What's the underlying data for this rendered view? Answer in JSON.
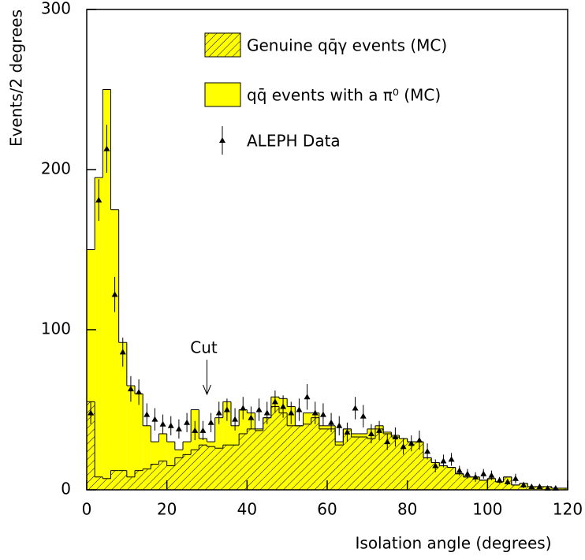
{
  "chart_data": {
    "type": "histogram",
    "xlabel": "Isolation angle (degrees)",
    "ylabel": "Events/2 degrees",
    "bins": [
      0,
      2,
      4,
      6,
      8,
      10,
      12,
      14,
      16,
      18,
      20,
      22,
      24,
      26,
      28,
      30,
      32,
      34,
      36,
      38,
      40,
      42,
      44,
      46,
      48,
      50,
      52,
      54,
      56,
      58,
      60,
      62,
      64,
      66,
      68,
      70,
      72,
      74,
      76,
      78,
      80,
      82,
      84,
      86,
      88,
      90,
      92,
      94,
      96,
      98,
      100,
      102,
      104,
      106,
      108,
      110,
      112,
      114,
      116,
      118,
      120
    ],
    "xlim": [
      0,
      120
    ],
    "xticks": [
      0,
      20,
      40,
      60,
      80,
      100,
      120
    ],
    "ylim": [
      0,
      300
    ],
    "yticks": [
      0,
      100,
      200,
      300
    ],
    "series": [
      {
        "name": "Genuine qq̄γ events (MC)",
        "color": "#ffff00",
        "hatch": true,
        "values": [
          55,
          8,
          7,
          12,
          12,
          8,
          12,
          13,
          16,
          18,
          15,
          20,
          22,
          25,
          28,
          27,
          26,
          28,
          28,
          35,
          38,
          37,
          45,
          52,
          48,
          40,
          40,
          41,
          45,
          38,
          38,
          28,
          38,
          33,
          33,
          32,
          38,
          35,
          33,
          32,
          30,
          30,
          20,
          17,
          15,
          14,
          10,
          8,
          8,
          6,
          7,
          5,
          8,
          3,
          4,
          2,
          2,
          2,
          1,
          1
        ]
      },
      {
        "name": "qq̄ events with a π⁰ (MC)",
        "color": "#ffff00",
        "hatch": false,
        "values": [
          95,
          187,
          243,
          163,
          80,
          57,
          48,
          27,
          14,
          17,
          15,
          5,
          8,
          25,
          4,
          3,
          19,
          27,
          12,
          15,
          10,
          1,
          0,
          6,
          9,
          12,
          0,
          7,
          3,
          2,
          2,
          2,
          0,
          2,
          2,
          6,
          2,
          1,
          1,
          0,
          0,
          0,
          0,
          0,
          0,
          0,
          0,
          0,
          0,
          0,
          0,
          0,
          0,
          0,
          0,
          0,
          0,
          0,
          0,
          0
        ]
      }
    ],
    "data_points": {
      "name": "ALEPH Data",
      "color": "#000000",
      "x": [
        1,
        3,
        5,
        7,
        9,
        11,
        13,
        15,
        17,
        19,
        21,
        23,
        25,
        27,
        29,
        31,
        33,
        35,
        37,
        39,
        41,
        43,
        45,
        47,
        49,
        51,
        53,
        55,
        57,
        59,
        61,
        63,
        65,
        67,
        69,
        71,
        73,
        75,
        77,
        79,
        81,
        83,
        85,
        87,
        89,
        91,
        93,
        95,
        97,
        99,
        101,
        103,
        105,
        107,
        109,
        111,
        113,
        115,
        117
      ],
      "values": [
        48,
        181,
        213,
        122,
        86,
        63,
        61,
        47,
        44,
        41,
        40,
        38,
        42,
        37,
        37,
        42,
        48,
        50,
        44,
        51,
        45,
        50,
        48,
        55,
        52,
        48,
        50,
        58,
        48,
        47,
        42,
        40,
        36,
        51,
        46,
        35,
        37,
        30,
        33,
        27,
        29,
        31,
        24,
        15,
        18,
        19,
        12,
        10,
        8,
        10,
        9,
        6,
        5,
        7,
        3,
        2,
        2,
        1,
        1
      ],
      "errors": [
        7,
        13,
        15,
        11,
        9,
        8,
        8,
        7,
        7,
        6,
        6,
        6,
        6,
        6,
        6,
        6,
        7,
        7,
        7,
        7,
        7,
        7,
        7,
        7,
        7,
        7,
        7,
        8,
        7,
        7,
        6,
        6,
        6,
        7,
        7,
        6,
        6,
        5,
        6,
        5,
        5,
        6,
        5,
        4,
        4,
        4,
        3,
        3,
        3,
        3,
        3,
        2,
        2,
        3,
        2,
        1,
        1,
        1,
        1
      ]
    },
    "annotation": {
      "text": "Cut",
      "x": 30
    },
    "legend": "upper-left"
  }
}
